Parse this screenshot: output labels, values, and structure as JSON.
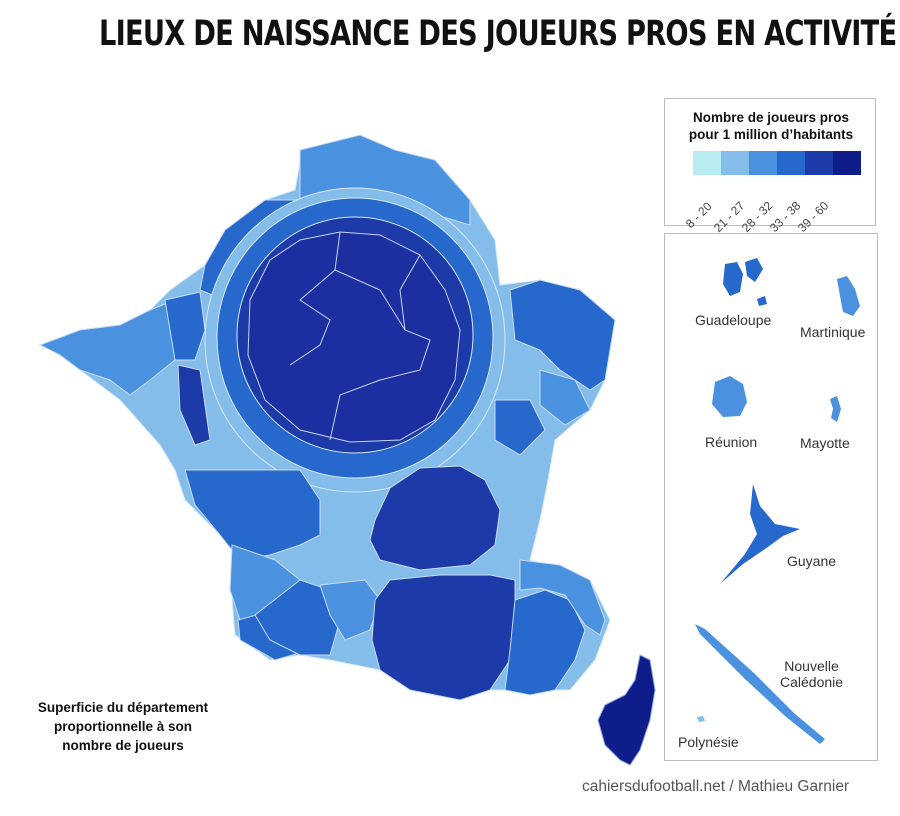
{
  "title": "LIEUX DE NAISSANCE DES JOUEURS PROS EN ACTIVITÉ",
  "legend": {
    "title_line1": "Nombre de joueurs pros",
    "title_line2": "pour 1 million d’habitants",
    "classes": [
      {
        "label": "8 - 20",
        "color": "#b8ecf0"
      },
      {
        "label": "21 - 27",
        "color": "#84bcea"
      },
      {
        "label": "28 - 32",
        "color": "#4a92e0"
      },
      {
        "label": "33 - 38",
        "color": "#2768cc"
      },
      {
        "label": "39 - 60",
        "color": "#1c3aa8"
      },
      {
        "label": "",
        "color": "#0e1d8a"
      }
    ]
  },
  "overseas": [
    {
      "name": "Guadeloupe"
    },
    {
      "name": "Martinique"
    },
    {
      "name": "Réunion"
    },
    {
      "name": "Mayotte"
    },
    {
      "name": "Guyane"
    },
    {
      "name_line1": "Nouvelle",
      "name_line2": "Calédonie"
    },
    {
      "name": "Polynésie"
    }
  ],
  "note": {
    "line1": "Superficie du département",
    "line2": "proportionnelle à son",
    "line3": "nombre de joueurs"
  },
  "credit": "cahiersdufootball.net / Mathieu Garnier"
}
